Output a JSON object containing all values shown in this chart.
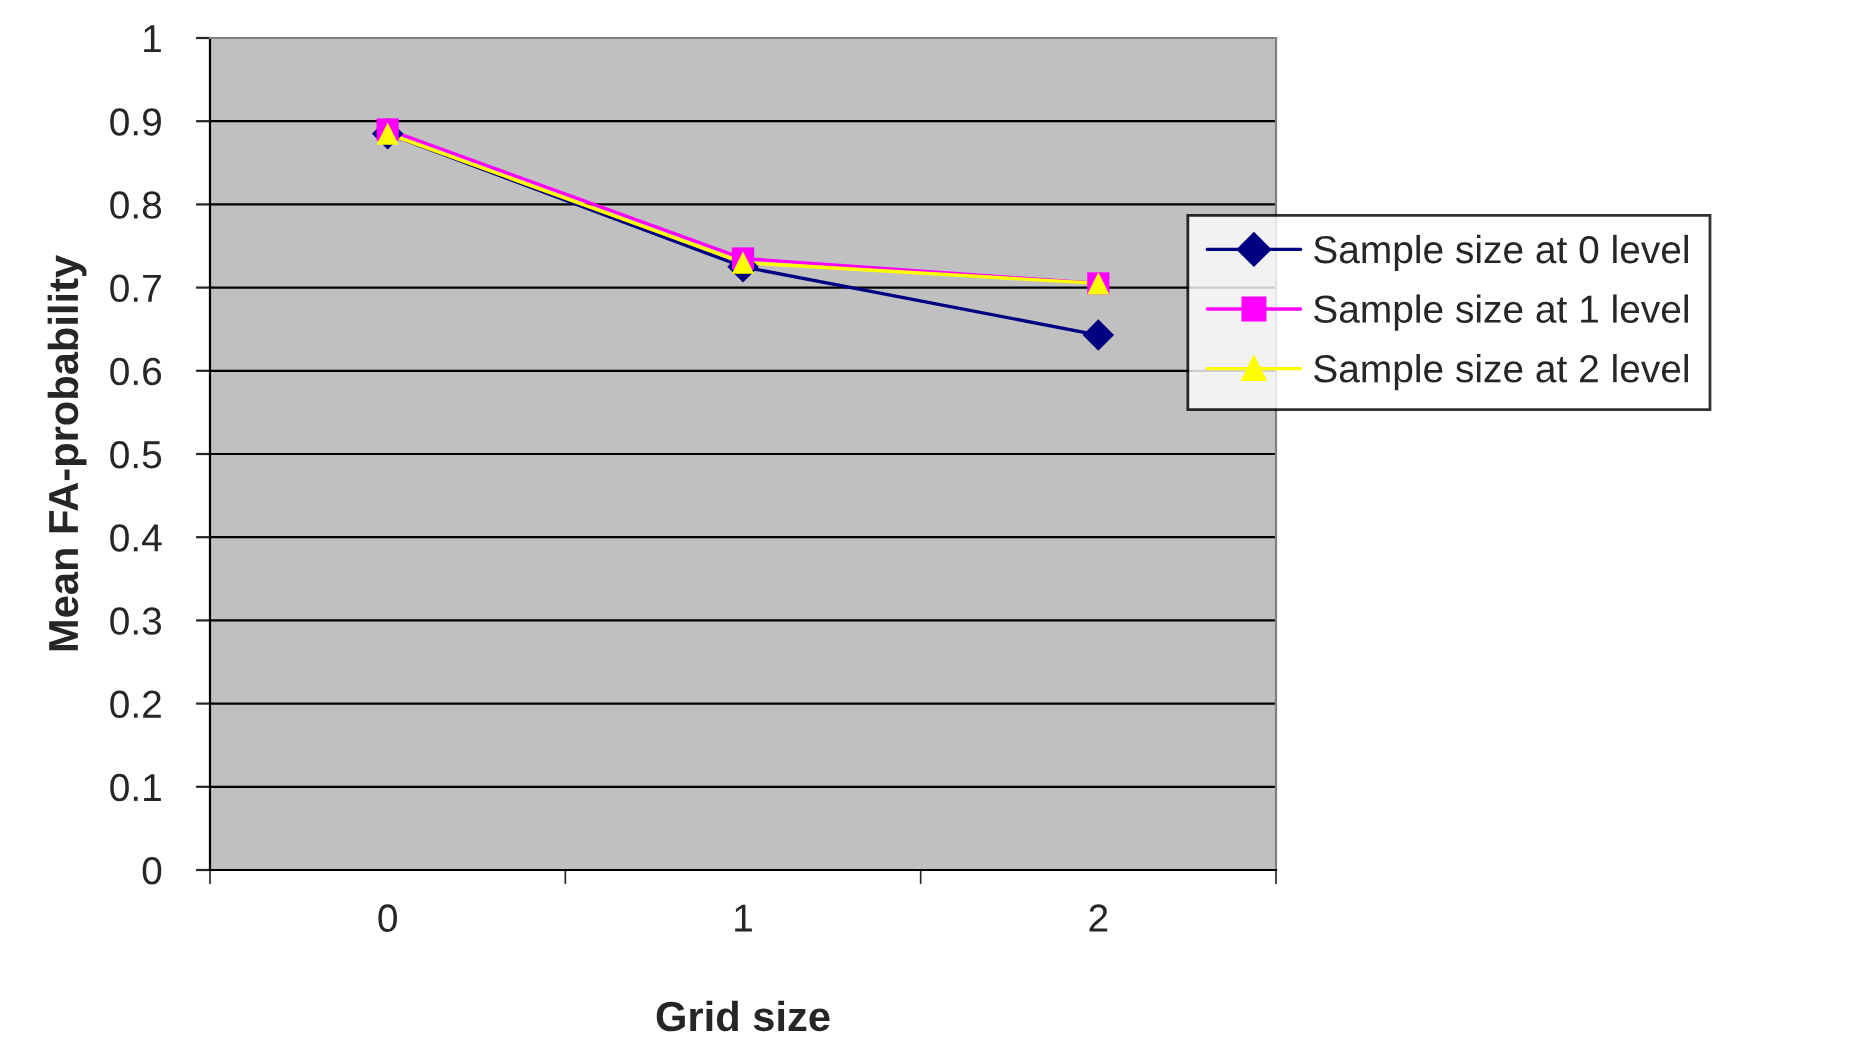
{
  "chart_data": {
    "type": "line",
    "xlabel": "Grid size",
    "ylabel": "Mean FA-probability",
    "x": [
      0,
      1,
      2
    ],
    "xlim": [
      -0.5,
      2.5
    ],
    "xticks": [
      0,
      1,
      2
    ],
    "series": [
      {
        "name": "Sample size at 0 level",
        "color": "#000080",
        "marker": "diamond",
        "values": [
          0.885,
          0.725,
          0.643
        ]
      },
      {
        "name": "Sample size at 1 level",
        "color": "#ff00ff",
        "marker": "square",
        "values": [
          0.89,
          0.735,
          0.705
        ]
      },
      {
        "name": "Sample size at 2 level",
        "color": "#ffff00",
        "marker": "triangle",
        "values": [
          0.885,
          0.73,
          0.705
        ]
      }
    ],
    "ylim": [
      0,
      1
    ],
    "yticks": [
      0,
      0.1,
      0.2,
      0.3,
      0.4,
      0.5,
      0.6,
      0.7,
      0.8,
      0.9,
      1
    ],
    "grid": "y",
    "legend": "right",
    "line_style": "solid"
  }
}
